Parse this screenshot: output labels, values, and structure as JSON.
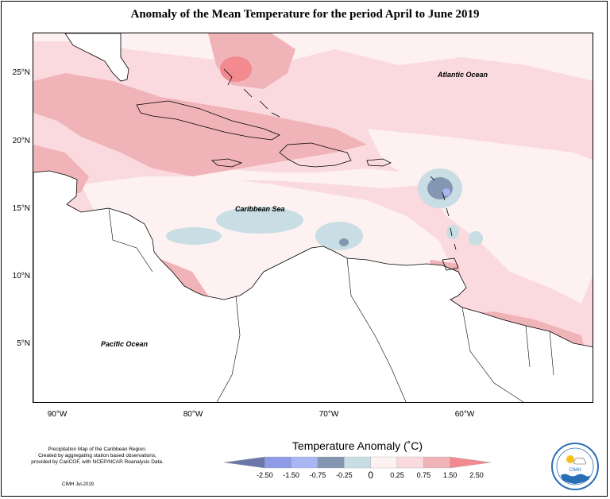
{
  "title": "Anomaly of the Mean Temperature for the period April to June 2019",
  "lat_labels": [
    "25°N",
    "20°N",
    "15°N",
    "10°N",
    "5°N"
  ],
  "lon_labels": [
    "90°W",
    "80°W",
    "70°W",
    "60°W"
  ],
  "ocean_labels": {
    "atlantic": "Atlantic Ocean",
    "caribbean": "Caribbean Sea",
    "pacific": "Pacific Ocean"
  },
  "notes": {
    "line1": "Precipitation Map of the Caribbean Region.",
    "line2": "Created by aggregating station based observations,",
    "line3": "provided by CariCOF, with NCEP/NCAR Reanalysis Data."
  },
  "credit": "CIMH Jul-2019",
  "legend": {
    "title": "Temperature Anomaly (˚C)",
    "ticks": [
      "-2.50",
      "-1.50",
      "-0.75",
      "-0.25",
      "0",
      "0.25",
      "0.75",
      "1.50",
      "2.50"
    ],
    "colors": [
      "#6a78a8",
      "#8e9ce8",
      "#a8b6f4",
      "#8497b2",
      "#c8dde4",
      "#fdf1f1",
      "#fadadf",
      "#f0b3b8",
      "#f28a90"
    ]
  },
  "logo": {
    "name": "CIMH"
  },
  "colors": {
    "strong_warm": "#f28a90",
    "warm": "#f0b3b8",
    "mild_warm": "#fadadf",
    "slight_warm": "#fdf1f1",
    "slight_cool": "#c8dde4",
    "cool": "#8497b2"
  }
}
